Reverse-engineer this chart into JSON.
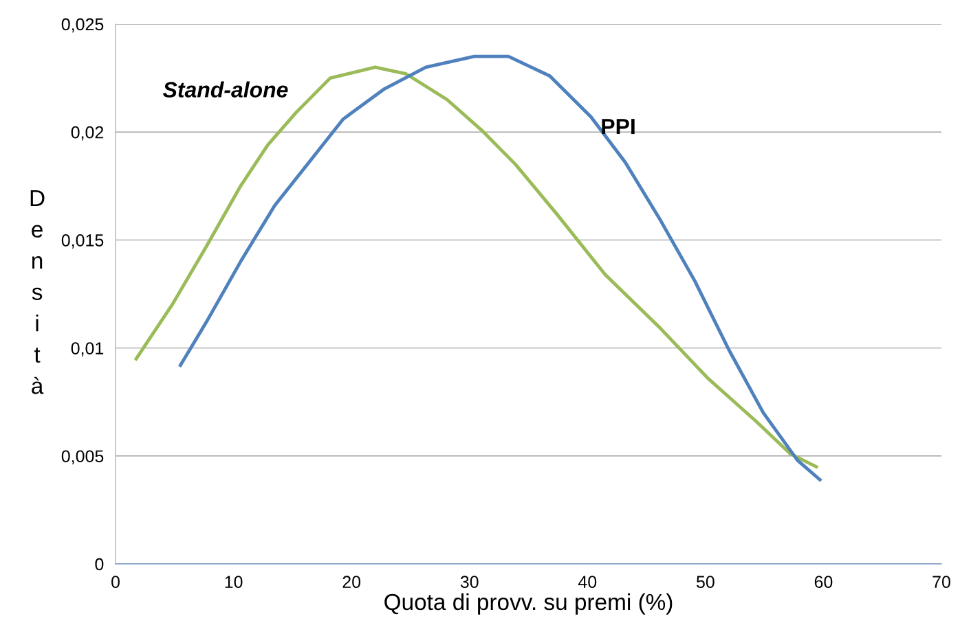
{
  "chart_data": {
    "type": "line",
    "xlabel": "Quota di provv. su premi (%)",
    "ylabel": "Densità",
    "xlim": [
      0,
      70
    ],
    "xticks": [
      0,
      10,
      20,
      30,
      40,
      50,
      60,
      70
    ],
    "ylim": [
      0,
      0.025
    ],
    "yticks": [
      0,
      {
        "value": 0.005,
        "label": "0,005"
      },
      {
        "value": 0.01,
        "label": "0,01"
      },
      {
        "value": 0.015,
        "label": "0,015"
      },
      {
        "value": 0.02,
        "label": "0,02"
      },
      {
        "value": 0.025,
        "label": "0,025"
      }
    ],
    "grid": "y",
    "marker": "none",
    "line_style": "solid",
    "legend": false,
    "series": [
      {
        "name": "Stand-alone",
        "color": "#9bbb59",
        "x": [
          1.75,
          4.8,
          7.7,
          10.6,
          12.9,
          15.3,
          18.2,
          22.0,
          24.6,
          28.1,
          31.0,
          33.9,
          37.4,
          41.5,
          46.2,
          50.2,
          54.3,
          57.2,
          59.4
        ],
        "values": [
          0.0095,
          0.012,
          0.0147,
          0.0175,
          0.0194,
          0.0209,
          0.0225,
          0.023,
          0.0227,
          0.0215,
          0.0201,
          0.0185,
          0.0162,
          0.0134,
          0.0109,
          0.0086,
          0.0066,
          0.0051,
          0.0045
        ]
      },
      {
        "name": "PPI",
        "color": "#4f81bd",
        "x": [
          5.5,
          7.7,
          10.6,
          13.5,
          16.4,
          19.3,
          22.8,
          26.3,
          30.4,
          33.3,
          36.8,
          40.3,
          43.2,
          46.2,
          49.1,
          52.0,
          54.9,
          57.8,
          59.7
        ],
        "values": [
          0.0092,
          0.0112,
          0.014,
          0.0166,
          0.0186,
          0.0206,
          0.022,
          0.023,
          0.0235,
          0.0235,
          0.0226,
          0.0207,
          0.0186,
          0.0159,
          0.0131,
          0.0099,
          0.007,
          0.0048,
          0.0039
        ]
      }
    ]
  }
}
